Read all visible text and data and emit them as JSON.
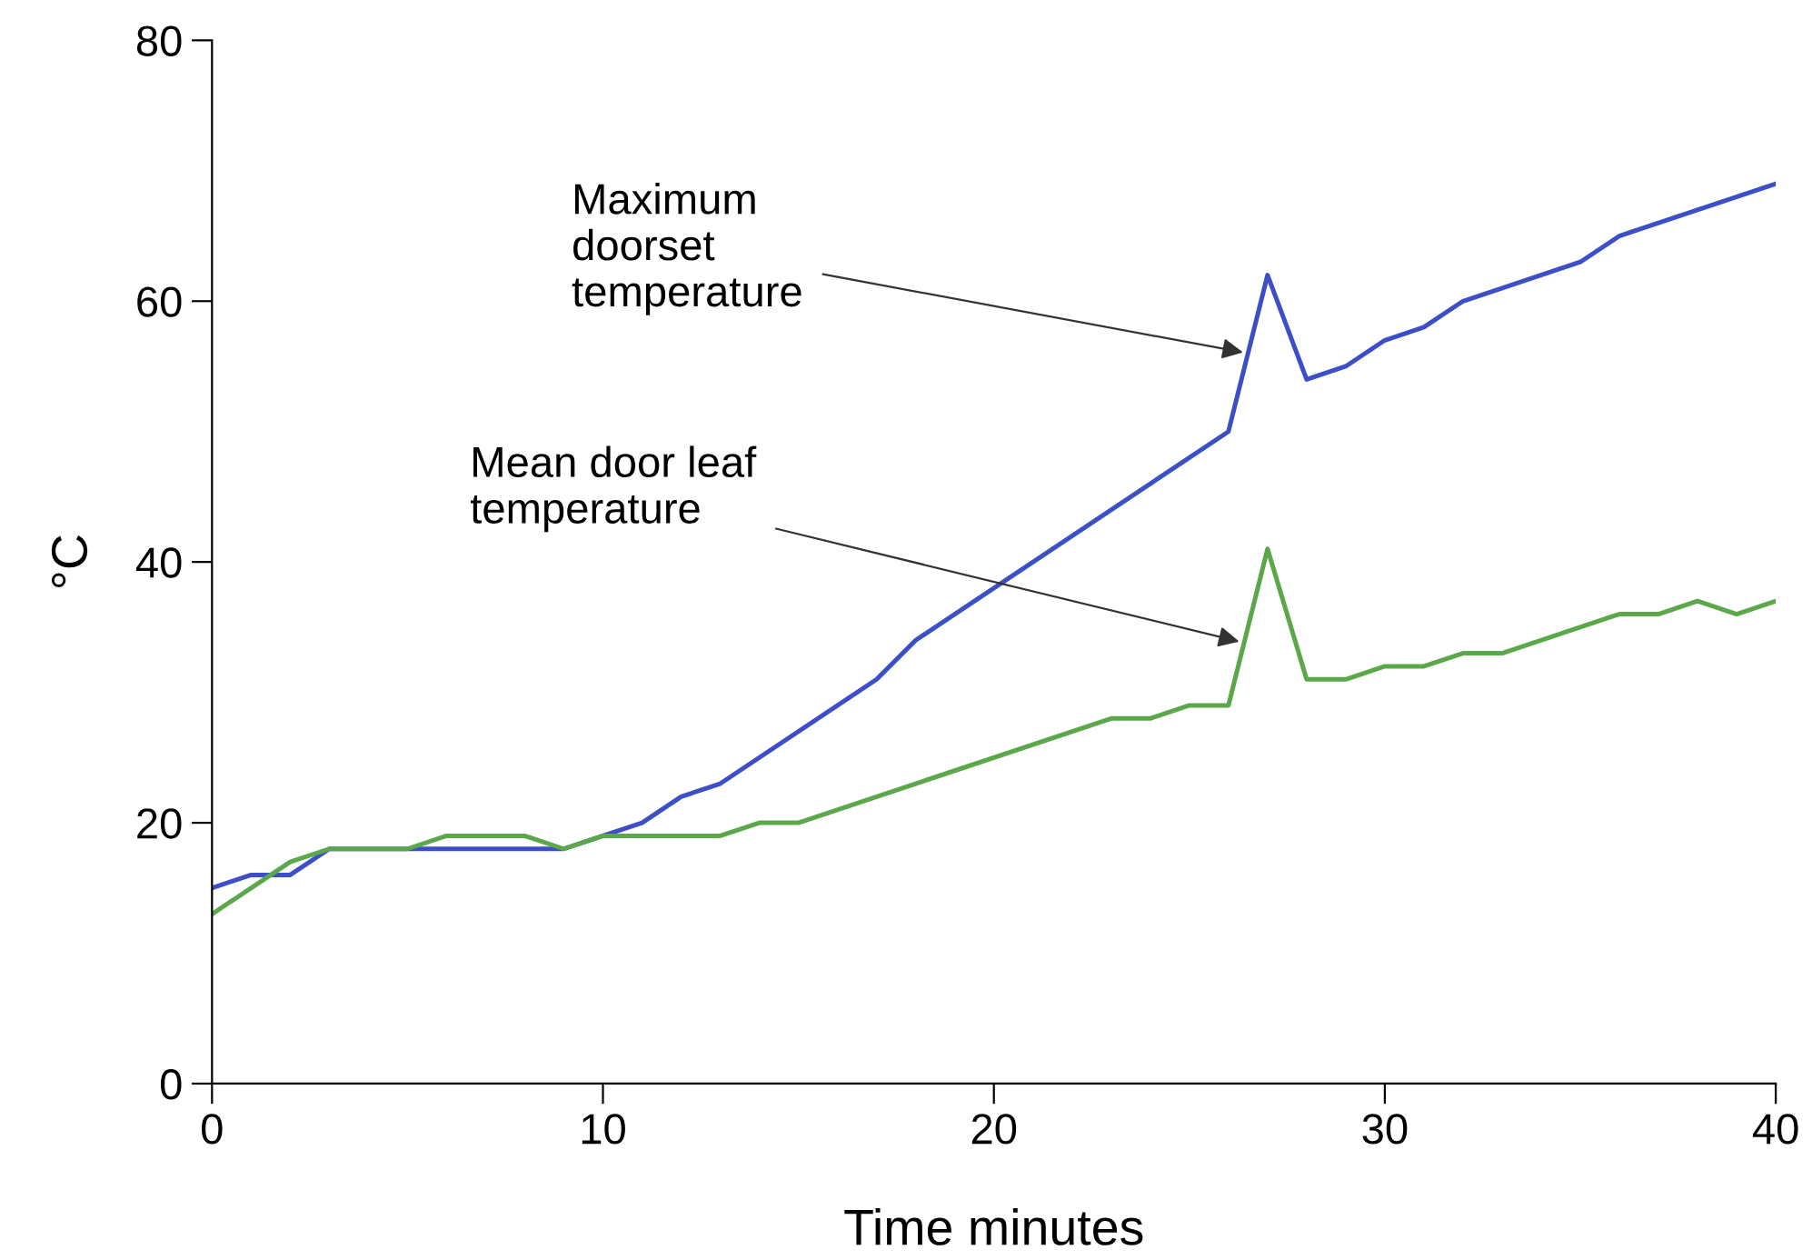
{
  "chart_data": {
    "type": "line",
    "xlabel": "Time minutes",
    "ylabel": "°C",
    "xlim": [
      0,
      40
    ],
    "ylim": [
      0,
      80
    ],
    "xticks": [
      0,
      10,
      20,
      30,
      40
    ],
    "yticks": [
      0,
      20,
      40,
      60,
      80
    ],
    "grid": false,
    "marker": "none",
    "line_style": "solid",
    "series": [
      {
        "color": "#3c4fc8",
        "x": [
          0,
          1,
          2,
          3,
          9,
          10,
          11,
          12,
          13,
          17,
          18,
          26,
          27,
          28,
          29,
          30,
          31,
          32,
          35,
          36,
          40
        ],
        "values": [
          15,
          16,
          16,
          18,
          18,
          19,
          20,
          22,
          23,
          31,
          34,
          50,
          62,
          54,
          55,
          57,
          58,
          60,
          63,
          65,
          69
        ]
      },
      {
        "color": "#5aa84a",
        "x": [
          0,
          2,
          3,
          5,
          6,
          8,
          9,
          10,
          13,
          14,
          15,
          23,
          24,
          25,
          26,
          27,
          28,
          29,
          30,
          31,
          32,
          33,
          36,
          37,
          38,
          39,
          40
        ],
        "values": [
          13,
          17,
          18,
          18,
          19,
          19,
          18,
          19,
          19,
          20,
          20,
          28,
          28,
          29,
          29,
          41,
          31,
          31,
          32,
          32,
          33,
          33,
          36,
          36,
          37,
          36,
          37
        ]
      }
    ],
    "annotations": [
      {
        "text": "Maximum\ndoorset\ntemperature",
        "x": 26.5,
        "y": 56
      },
      {
        "text": "Mean door leaf\ntemperature",
        "x": 26.4,
        "y": 33.8
      }
    ]
  }
}
